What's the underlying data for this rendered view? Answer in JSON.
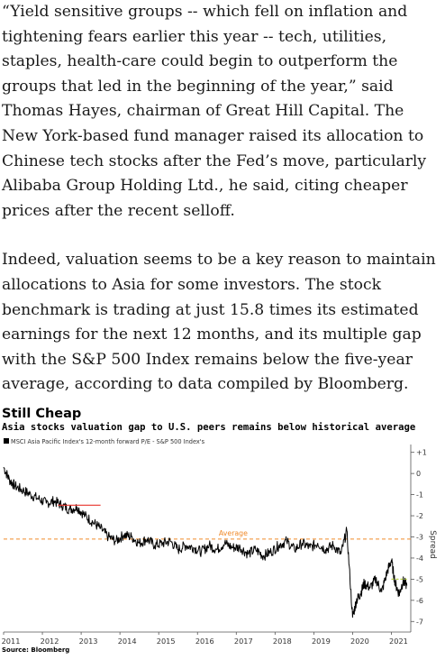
{
  "article": {
    "paragraphs": [
      "“Yield sensitive groups -- which fell on inflation and tightening fears earlier this year -- tech, utilities, staples, health-care could begin to outperform the groups that led in the beginning of the year,” said Thomas Hayes, chairman of Great Hill Capital. The New York-based fund manager raised its allocation to Chinese tech stocks after the Fed’s move, particularly Alibaba Group Holding Ltd., he said, citing cheaper prices after the recent selloff.",
      "Indeed, valuation seems to be a key reason to maintain allocations to Asia for some investors. The stock benchmark is trading at just 15.8 times its estimated earnings for the next 12 months, and its multiple gap with the S&P 500 Index remains below the five-year average, according to data compiled by Bloomberg."
    ]
  },
  "chart": {
    "title": "Still Cheap",
    "subtitle": "Asia stocks valuation gap to U.S. peers remains below historical average",
    "source": "Source: Bloomberg",
    "legend_label": "MSCI Asia Pacific Index's 12-month forward P/E - S&P 500 Index's",
    "average_label": "Average",
    "right_axis_label": "Spread",
    "colors": {
      "series": "#000000",
      "average": "#f08a2a",
      "marker": "#e8342c",
      "marker_recent": "#b7d04a",
      "grid": "#d9d9d9"
    }
  },
  "chart_data": {
    "type": "line",
    "title": "Still Cheap",
    "subtitle": "Asia stocks valuation gap to U.S. peers remains below historical average",
    "ylabel": "Spread",
    "ylim": [
      -7.5,
      1.2
    ],
    "yticks": [
      1,
      0,
      -1,
      -2,
      -3,
      -4,
      -5,
      -6,
      -7
    ],
    "xlim": [
      2011.0,
      2021.5
    ],
    "xticks": [
      "2011",
      "2012",
      "2013",
      "2014",
      "2015",
      "2016",
      "2017",
      "2018",
      "2019",
      "2020",
      "2021"
    ],
    "average": -3.1,
    "grid": false,
    "series": [
      {
        "name": "MSCI Asia Pacific Index's 12-month forward P/E - S&P 500 Index's",
        "x": [
          2011.0,
          2011.15,
          2011.3,
          2011.5,
          2011.7,
          2011.9,
          2012.1,
          2012.3,
          2012.5,
          2012.7,
          2012.9,
          2013.1,
          2013.3,
          2013.5,
          2013.7,
          2013.9,
          2014.1,
          2014.3,
          2014.5,
          2014.7,
          2014.9,
          2015.1,
          2015.3,
          2015.5,
          2015.7,
          2015.9,
          2016.1,
          2016.3,
          2016.5,
          2016.7,
          2016.9,
          2017.1,
          2017.3,
          2017.5,
          2017.7,
          2017.9,
          2018.1,
          2018.3,
          2018.5,
          2018.7,
          2018.9,
          2019.1,
          2019.3,
          2019.5,
          2019.7,
          2019.85,
          2020.0,
          2020.1,
          2020.2,
          2020.3,
          2020.45,
          2020.6,
          2020.75,
          2020.9,
          2021.0,
          2021.1,
          2021.2,
          2021.3,
          2021.4
        ],
        "y": [
          0.3,
          -0.3,
          -0.6,
          -0.8,
          -1.0,
          -1.2,
          -1.4,
          -1.3,
          -1.5,
          -1.7,
          -1.6,
          -2.0,
          -2.3,
          -2.6,
          -3.0,
          -3.2,
          -2.9,
          -3.0,
          -3.3,
          -3.1,
          -3.4,
          -3.3,
          -3.2,
          -3.6,
          -3.4,
          -3.5,
          -3.7,
          -3.4,
          -3.6,
          -3.3,
          -3.5,
          -3.5,
          -3.8,
          -3.6,
          -3.9,
          -3.7,
          -3.4,
          -3.2,
          -3.6,
          -3.3,
          -3.5,
          -3.3,
          -3.6,
          -3.4,
          -3.8,
          -2.7,
          -6.8,
          -6.0,
          -5.7,
          -5.2,
          -5.4,
          -5.0,
          -5.6,
          -4.6,
          -4.1,
          -5.2,
          -5.7,
          -5.1,
          -5.3
        ]
      }
    ],
    "annotations": [
      {
        "type": "hline_segment",
        "y": -1.5,
        "x_from": 2012.4,
        "x_to": 2013.5,
        "color": "red"
      },
      {
        "type": "hline_segment",
        "y": -5.0,
        "x_from": 2021.0,
        "x_to": 2021.4,
        "color": "green"
      }
    ]
  }
}
